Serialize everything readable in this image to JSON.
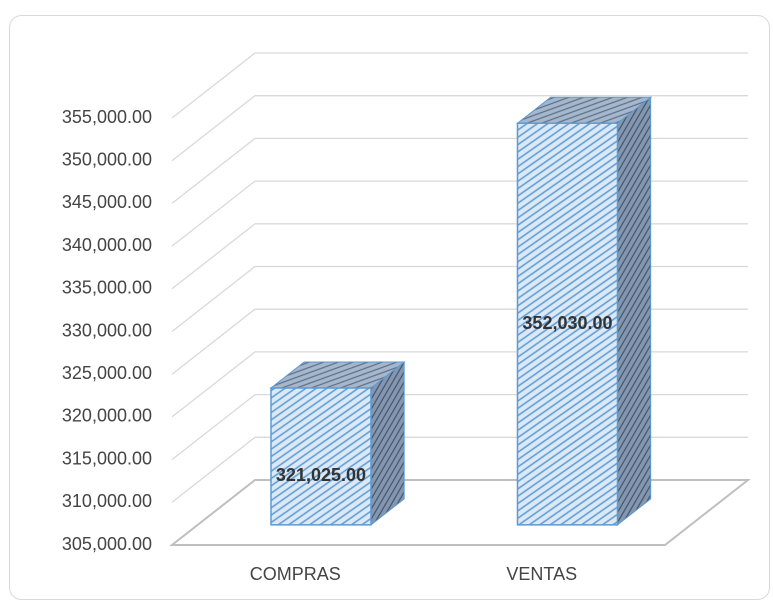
{
  "chart_data": {
    "type": "bar3d",
    "categories": [
      "COMPRAS",
      "VENTAS"
    ],
    "values": [
      321025,
      352030
    ],
    "value_labels": [
      "321,025.00",
      "352,030.00"
    ],
    "color": "#5b9bd5",
    "ylim": [
      305000,
      355000
    ],
    "yticks": [
      {
        "value": 305000,
        "label": "305,000.00"
      },
      {
        "value": 310000,
        "label": "310,000.00"
      },
      {
        "value": 315000,
        "label": "315,000.00"
      },
      {
        "value": 320000,
        "label": "320,000.00"
      },
      {
        "value": 325000,
        "label": "325,000.00"
      },
      {
        "value": 330000,
        "label": "330,000.00"
      },
      {
        "value": 335000,
        "label": "335,000.00"
      },
      {
        "value": 340000,
        "label": "340,000.00"
      },
      {
        "value": 345000,
        "label": "345,000.00"
      },
      {
        "value": 350000,
        "label": "350,000.00"
      },
      {
        "value": 355000,
        "label": "355,000.00"
      }
    ],
    "grid": true
  }
}
